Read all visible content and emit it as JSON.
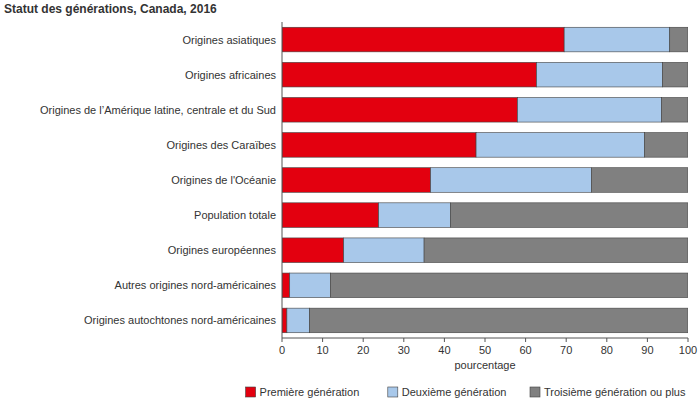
{
  "chart_data": {
    "type": "bar",
    "orientation": "horizontal",
    "stacked": true,
    "title": "Statut des générations, Canada, 2016",
    "x_label": "pourcentage",
    "categories": [
      "Origines asiatiques",
      "Origines africaines",
      "Origines de l’Amérique latine, centrale et du Sud",
      "Origines des Caraïbes",
      "Origines de l'Océanie",
      "Population totale",
      "Origines européennes",
      "Autres origines nord-américaines",
      "Origines autochtones nord-américaines"
    ],
    "series": [
      {
        "name": "Première génération",
        "color": "#e3000f",
        "values": [
          69.5,
          62.7,
          58,
          47.8,
          36.6,
          23.8,
          15.2,
          1.9,
          1.2
        ]
      },
      {
        "name": "Deuxième génération",
        "color": "#a8c8ea",
        "values": [
          26,
          31,
          35.5,
          41.5,
          39.6,
          17.7,
          19.8,
          10,
          5.6
        ]
      },
      {
        "name": "Troisième génération ou plus",
        "color": "#808080",
        "values": [
          4.5,
          6.3,
          6.5,
          10.7,
          23.8,
          58.5,
          65,
          88.1,
          93.2
        ]
      }
    ],
    "xlim": [
      0,
      100
    ],
    "xticks": [
      0,
      10,
      20,
      30,
      40,
      50,
      60,
      70,
      80,
      90,
      100
    ],
    "grid": false,
    "legend": "bottom"
  }
}
